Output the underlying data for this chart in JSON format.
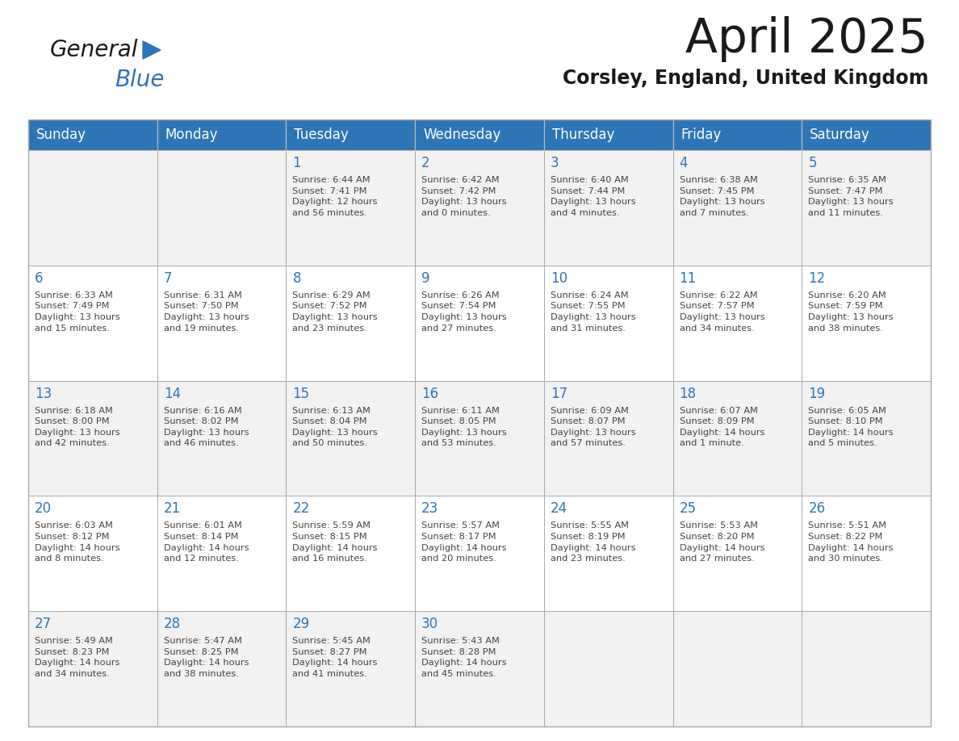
{
  "title": "April 2025",
  "subtitle": "Corsley, England, United Kingdom",
  "days_of_week": [
    "Sunday",
    "Monday",
    "Tuesday",
    "Wednesday",
    "Thursday",
    "Friday",
    "Saturday"
  ],
  "header_bg": "#2E75B6",
  "header_text_color": "#FFFFFF",
  "row_bg_odd": "#F2F2F2",
  "row_bg_even": "#FFFFFF",
  "cell_border_color": "#AAAAAA",
  "day_num_color": "#2E75B6",
  "text_color": "#444444",
  "calendar_data": [
    [
      "",
      "",
      "1\nSunrise: 6:44 AM\nSunset: 7:41 PM\nDaylight: 12 hours\nand 56 minutes.",
      "2\nSunrise: 6:42 AM\nSunset: 7:42 PM\nDaylight: 13 hours\nand 0 minutes.",
      "3\nSunrise: 6:40 AM\nSunset: 7:44 PM\nDaylight: 13 hours\nand 4 minutes.",
      "4\nSunrise: 6:38 AM\nSunset: 7:45 PM\nDaylight: 13 hours\nand 7 minutes.",
      "5\nSunrise: 6:35 AM\nSunset: 7:47 PM\nDaylight: 13 hours\nand 11 minutes."
    ],
    [
      "6\nSunrise: 6:33 AM\nSunset: 7:49 PM\nDaylight: 13 hours\nand 15 minutes.",
      "7\nSunrise: 6:31 AM\nSunset: 7:50 PM\nDaylight: 13 hours\nand 19 minutes.",
      "8\nSunrise: 6:29 AM\nSunset: 7:52 PM\nDaylight: 13 hours\nand 23 minutes.",
      "9\nSunrise: 6:26 AM\nSunset: 7:54 PM\nDaylight: 13 hours\nand 27 minutes.",
      "10\nSunrise: 6:24 AM\nSunset: 7:55 PM\nDaylight: 13 hours\nand 31 minutes.",
      "11\nSunrise: 6:22 AM\nSunset: 7:57 PM\nDaylight: 13 hours\nand 34 minutes.",
      "12\nSunrise: 6:20 AM\nSunset: 7:59 PM\nDaylight: 13 hours\nand 38 minutes."
    ],
    [
      "13\nSunrise: 6:18 AM\nSunset: 8:00 PM\nDaylight: 13 hours\nand 42 minutes.",
      "14\nSunrise: 6:16 AM\nSunset: 8:02 PM\nDaylight: 13 hours\nand 46 minutes.",
      "15\nSunrise: 6:13 AM\nSunset: 8:04 PM\nDaylight: 13 hours\nand 50 minutes.",
      "16\nSunrise: 6:11 AM\nSunset: 8:05 PM\nDaylight: 13 hours\nand 53 minutes.",
      "17\nSunrise: 6:09 AM\nSunset: 8:07 PM\nDaylight: 13 hours\nand 57 minutes.",
      "18\nSunrise: 6:07 AM\nSunset: 8:09 PM\nDaylight: 14 hours\nand 1 minute.",
      "19\nSunrise: 6:05 AM\nSunset: 8:10 PM\nDaylight: 14 hours\nand 5 minutes."
    ],
    [
      "20\nSunrise: 6:03 AM\nSunset: 8:12 PM\nDaylight: 14 hours\nand 8 minutes.",
      "21\nSunrise: 6:01 AM\nSunset: 8:14 PM\nDaylight: 14 hours\nand 12 minutes.",
      "22\nSunrise: 5:59 AM\nSunset: 8:15 PM\nDaylight: 14 hours\nand 16 minutes.",
      "23\nSunrise: 5:57 AM\nSunset: 8:17 PM\nDaylight: 14 hours\nand 20 minutes.",
      "24\nSunrise: 5:55 AM\nSunset: 8:19 PM\nDaylight: 14 hours\nand 23 minutes.",
      "25\nSunrise: 5:53 AM\nSunset: 8:20 PM\nDaylight: 14 hours\nand 27 minutes.",
      "26\nSunrise: 5:51 AM\nSunset: 8:22 PM\nDaylight: 14 hours\nand 30 minutes."
    ],
    [
      "27\nSunrise: 5:49 AM\nSunset: 8:23 PM\nDaylight: 14 hours\nand 34 minutes.",
      "28\nSunrise: 5:47 AM\nSunset: 8:25 PM\nDaylight: 14 hours\nand 38 minutes.",
      "29\nSunrise: 5:45 AM\nSunset: 8:27 PM\nDaylight: 14 hours\nand 41 minutes.",
      "30\nSunrise: 5:43 AM\nSunset: 8:28 PM\nDaylight: 14 hours\nand 45 minutes.",
      "",
      "",
      ""
    ]
  ],
  "logo_color_general": "#1a1a1a",
  "logo_color_blue": "#2E75B6",
  "logo_triangle_color": "#2E75B6",
  "fig_width": 11.88,
  "fig_height": 9.18,
  "dpi": 100
}
